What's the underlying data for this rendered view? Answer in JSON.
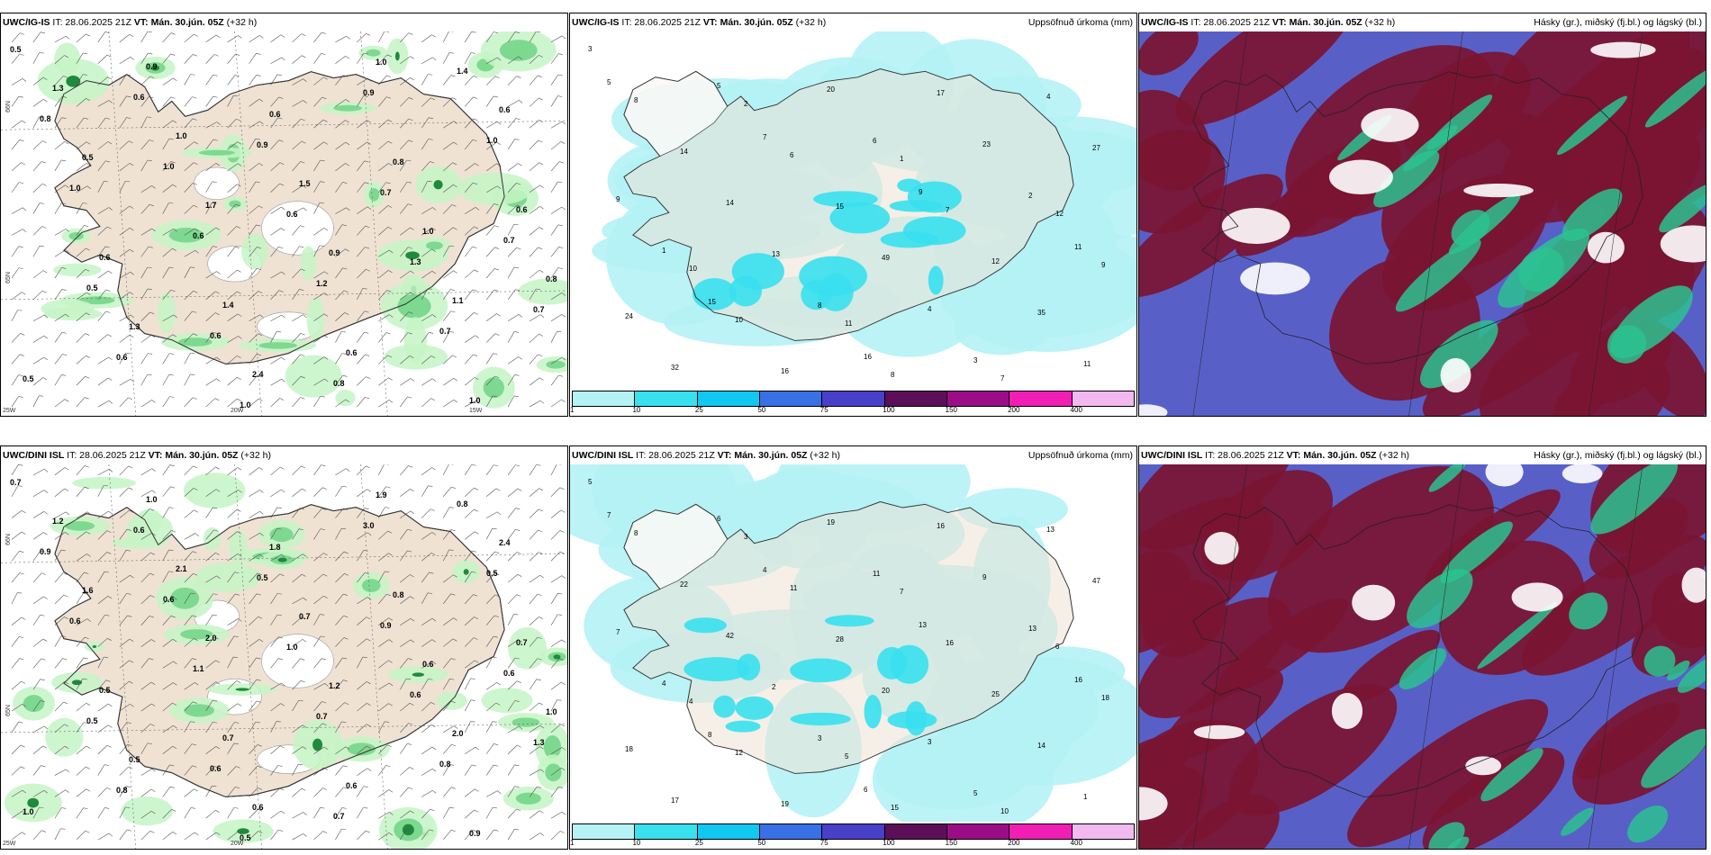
{
  "colors": {
    "land": "#efe2d3",
    "precip_light": "#c5f5c5",
    "precip_mid": "#76d68a",
    "precip_dark": "#1f8a3c",
    "cyan_light": "#b4f2f5",
    "cyan_mid": "#39e0ee",
    "cloud_high": "#7b1432",
    "cloud_mid": "#2bc290",
    "cloud_low": "#5860c8"
  },
  "panels": [
    {
      "id": "p1",
      "title_model": "UWC/IG-IS",
      "title_it": "IT: 28.06.2025 21Z",
      "title_vt": "VT: Mán. 30.jún. 05Z",
      "title_lead": "(+32",
      "title_lead2": "h)",
      "right": "",
      "type": "wind",
      "lat_labels": [
        "66N",
        "65N"
      ],
      "lon_labels": [
        "25W",
        "20W",
        "15W"
      ],
      "values": [
        "0.5",
        "0.6",
        "0.9",
        "0.7",
        "0.7",
        "0.5",
        "0.6",
        "0.8",
        "1.4",
        "0.8",
        "1.0",
        "0.6",
        "1.3",
        "0.7",
        "0.6",
        "1.0",
        "0.9",
        "1.0",
        "1.0",
        "0.6",
        "1.2",
        "0.7",
        "0.5",
        "0.9",
        "0.6",
        "0.8",
        "0.6",
        "0.6",
        "1.4",
        "0.6",
        "1.0",
        "1.3",
        "1.0",
        "1.5",
        "1.0",
        "0.8",
        "1.3",
        "2.4",
        "1.0",
        "0.6",
        "0.5",
        "1.7",
        "0.9",
        "1.1"
      ]
    },
    {
      "id": "p2",
      "title_model": "UWC/IG-IS",
      "title_it": "IT: 28.06.2025 21Z",
      "title_vt": "VT: Mán. 30.jún. 05Z",
      "title_lead": "(+32 h)",
      "right": "Uppsöfnuð úrkoma (mm)",
      "type": "precip",
      "values": [
        "3",
        "2",
        "1",
        "12",
        "10",
        "11",
        "7",
        "8",
        "6",
        "7",
        "9",
        "10",
        "8",
        "4",
        "14",
        "15",
        "12",
        "24",
        "16",
        "17",
        "27",
        "14",
        "49",
        "35",
        "32",
        "20",
        "23",
        "9",
        "13",
        "4",
        "11",
        "5",
        "6",
        "2",
        "1",
        "8",
        "3",
        "5",
        "7",
        "9",
        "11",
        "15",
        "16"
      ],
      "legend": [
        "1",
        "10",
        "25",
        "50",
        "75",
        "100",
        "150",
        "200",
        "400"
      ],
      "legend_colors": [
        "#b4f2f5",
        "#39e0ee",
        "#10c8f0",
        "#3a70e6",
        "#4840c8",
        "#5a0f58",
        "#9b0d86",
        "#f01eb4",
        "#f2b8f0"
      ]
    },
    {
      "id": "p3",
      "title_model": "UWC/IG-IS",
      "title_it": "IT: 28.06.2025 21Z",
      "title_vt": "VT: Mán. 30.jún. 05Z",
      "title_lead": "(+32 h)",
      "right": "Hásky (gr.), miðský (fj.bl.) og lágský (bl.)",
      "type": "cloud"
    },
    {
      "id": "p4",
      "title_model": "UWC/DINI ISL",
      "title_it": "IT: 28.06.2025 21Z",
      "title_vt": "VT: Mán. 30.jún. 05Z",
      "title_lead": "(+32 h)",
      "right": "",
      "type": "wind",
      "lat_labels": [
        "66N",
        "65N"
      ],
      "lon_labels": [
        "25W",
        "20W"
      ],
      "values": [
        "0.7",
        "0.6",
        "0.5",
        "0.9",
        "0.6",
        "0.5",
        "0.6",
        "0.7",
        "0.8",
        "0.9",
        "0.6",
        "1.0",
        "0.6",
        "1.3",
        "0.8",
        "0.5",
        "3.0",
        "0.5",
        "0.6",
        "1.1",
        "0.7",
        "0.8",
        "1.0",
        "1.0",
        "1.8",
        "0.8",
        "0.7",
        "0.5",
        "0.7",
        "0.6",
        "0.9",
        "1.2",
        "2.1",
        "0.7",
        "0.6",
        "1.0",
        "0.5",
        "0.6",
        "1.9",
        "2.4",
        "1.6",
        "2.0",
        "1.2",
        "2.0"
      ]
    },
    {
      "id": "p5",
      "title_model": "UWC/DINI ISL",
      "title_it": "IT: 28.06.2025 21Z",
      "title_vt": "VT: Mán. 30.jún. 05Z",
      "title_lead": "(+32 h)",
      "right": "Uppsöfnuð úrkoma (mm)",
      "type": "precip",
      "values": [
        "5",
        "3",
        "7",
        "6",
        "4",
        "5",
        "10",
        "8",
        "11",
        "16",
        "18",
        "12",
        "15",
        "13",
        "22",
        "28",
        "25",
        "18",
        "19",
        "16",
        "47",
        "42",
        "20",
        "14",
        "17",
        "19",
        "9",
        "7",
        "2",
        "3",
        "1",
        "6",
        "11",
        "13",
        "4",
        "3",
        "5",
        "7",
        "4",
        "13",
        "16",
        "8",
        "6"
      ],
      "legend": [
        "1",
        "10",
        "25",
        "50",
        "75",
        "100",
        "150",
        "200",
        "400"
      ],
      "legend_colors": [
        "#b4f2f5",
        "#39e0ee",
        "#10c8f0",
        "#3a70e6",
        "#4840c8",
        "#5a0f58",
        "#9b0d86",
        "#f01eb4",
        "#f2b8f0"
      ]
    },
    {
      "id": "p6",
      "title_model": "UWC/DINI ISL",
      "title_it": "IT: 28.06.2025 21Z",
      "title_vt": "VT: Mán. 30.jún. 05Z",
      "title_lead": "(+32 h)",
      "right": "Hásky (gr.), miðský (fj.bl.) og lágský (bl.)",
      "type": "cloud"
    }
  ]
}
